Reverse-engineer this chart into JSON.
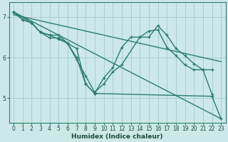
{
  "xlabel": "Humidex (Indice chaleur)",
  "bg_color": "#cce8e8",
  "grid_color": "#a8d0d0",
  "line_color": "#2d7d6e",
  "xlim": [
    -0.5,
    23.5
  ],
  "ylim": [
    4.4,
    7.35
  ],
  "yticks": [
    5,
    6,
    7
  ],
  "xticks": [
    0,
    1,
    2,
    3,
    4,
    5,
    6,
    7,
    8,
    9,
    10,
    11,
    12,
    13,
    14,
    15,
    16,
    17,
    18,
    19,
    20,
    21,
    22,
    23
  ],
  "series": [
    {
      "x": [
        0,
        23
      ],
      "y": [
        7.12,
        4.5
      ],
      "style": "-",
      "lw": 1.0,
      "markers": false
    },
    {
      "x": [
        0,
        23
      ],
      "y": [
        7.05,
        5.9
      ],
      "style": "-",
      "lw": 1.0,
      "markers": false
    },
    {
      "x": [
        0,
        1,
        2,
        3,
        4,
        5,
        6,
        7,
        8,
        9,
        10,
        11,
        12,
        13,
        14,
        15,
        16,
        17,
        18,
        19,
        20,
        21,
        22
      ],
      "y": [
        7.12,
        6.93,
        6.85,
        6.62,
        6.48,
        6.48,
        6.35,
        6.22,
        5.35,
        5.12,
        5.5,
        5.75,
        6.25,
        6.5,
        6.5,
        6.5,
        6.78,
        6.55,
        6.22,
        6.05,
        5.85,
        5.7,
        5.7
      ],
      "style": "-",
      "lw": 1.0,
      "markers": true
    },
    {
      "x": [
        0,
        2,
        3,
        4,
        5,
        6,
        7,
        8,
        9,
        10,
        11,
        12,
        14,
        15,
        16,
        17,
        18,
        19,
        20,
        21,
        22
      ],
      "y": [
        7.12,
        6.85,
        6.62,
        6.55,
        6.45,
        6.35,
        5.95,
        5.55,
        5.15,
        5.35,
        5.65,
        5.82,
        6.5,
        6.65,
        6.68,
        6.25,
        6.05,
        5.82,
        5.7,
        5.7,
        5.1
      ],
      "style": "-",
      "lw": 1.0,
      "markers": true
    },
    {
      "x": [
        0,
        1,
        2,
        3,
        4,
        5,
        6,
        7,
        8,
        9,
        22,
        23
      ],
      "y": [
        7.12,
        6.93,
        6.85,
        6.62,
        6.55,
        6.55,
        6.35,
        6.0,
        5.35,
        5.12,
        5.05,
        4.5
      ],
      "style": "-",
      "lw": 1.0,
      "markers": true
    }
  ]
}
